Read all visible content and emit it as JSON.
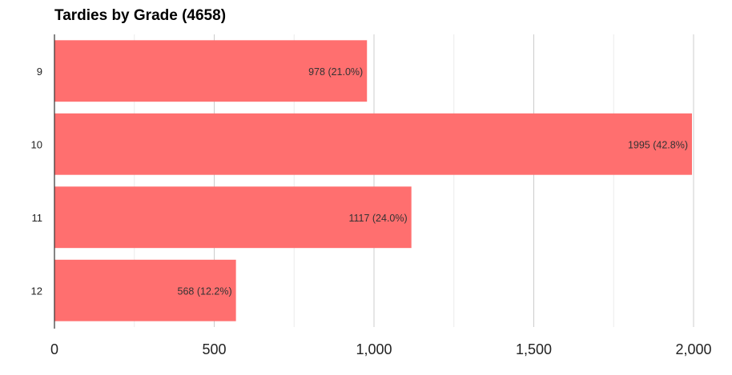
{
  "chart_data": {
    "type": "bar",
    "orientation": "horizontal",
    "title": "Tardies by Grade (4658)",
    "categories": [
      "9",
      "10",
      "11",
      "12"
    ],
    "values": [
      978,
      1995,
      1117,
      568
    ],
    "data_labels": [
      "978 (21.0%)",
      "1995 (42.8%)",
      "1117 (24.0%)",
      "568 (12.2%)"
    ],
    "xlim": [
      0,
      2000
    ],
    "x_ticks": [
      0,
      500,
      1000,
      1500,
      2000
    ],
    "x_tick_labels": [
      "0",
      "500",
      "1,000",
      "1,500",
      "2,000"
    ],
    "grid": true,
    "legend": "none",
    "bar_color": "#ff6f6f",
    "grid_major_color": "#cccccc",
    "grid_minor_color": "#ebebeb"
  }
}
